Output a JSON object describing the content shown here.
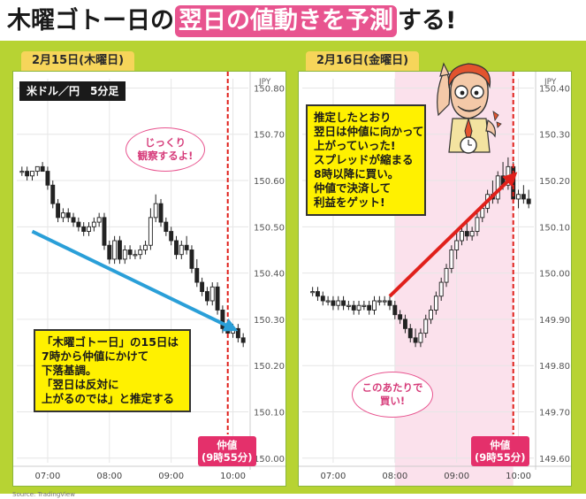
{
  "headline": {
    "part1": "木曜ゴトー日の",
    "highlight": "翌日の値動きを予測",
    "part2": "する!"
  },
  "source_note": "Source: TradingView",
  "colors": {
    "background": "#b7d333",
    "highlight": "#e8548f",
    "callout": "#fff100",
    "arrow_down": "#2a9fd8",
    "arrow_up": "#e0201b",
    "nakane_line": "#e0201b",
    "tag": "#e4306b",
    "shade": "#fbe1ec"
  },
  "panel1": {
    "date_label": "2月15日(木曜日)",
    "pair_label": "米ドル／円　5分足",
    "callout_lines": [
      "「木曜ゴトー日」の15日は",
      "7時から仲値にかけて",
      "下落基調。",
      "「翌日は反対に",
      "上がるのでは」と推定する"
    ],
    "bubble_lines": [
      "じっくり",
      "観察するよ!"
    ],
    "tag_lines": [
      "仲値",
      "(9時55分)"
    ]
  },
  "panel2": {
    "date_label": "2月16日(金曜日)",
    "callout_lines": [
      "推定したとおり",
      "翌日は仲値に向かって",
      "上がっていった!",
      "スプレッドが縮まる",
      "8時以降に買い。",
      "仲値で決済して",
      "利益をゲット!"
    ],
    "bubble_lines": [
      "このあたりで",
      "買い!"
    ],
    "tag_lines": [
      "仲値",
      "(9時55分)"
    ]
  },
  "chart_data": [
    {
      "type": "candlestick",
      "title": "",
      "currency_label": "JPY",
      "x_ticks": [
        "07:00",
        "08:00",
        "09:00",
        "10:00"
      ],
      "y_ticks": [
        "150.80",
        "150.70",
        "150.60",
        "150.50",
        "150.40",
        "150.30",
        "150.20",
        "150.10",
        "150.00"
      ],
      "ylim": [
        149.99,
        150.82
      ],
      "vertical_marker": "09:55",
      "trend_arrow": {
        "from": [
          "06:45",
          150.49
        ],
        "to": [
          "10:00",
          150.28
        ]
      },
      "candles": [
        {
          "t": "06:35",
          "o": 150.62,
          "h": 150.63,
          "l": 150.61,
          "c": 150.62
        },
        {
          "t": "06:40",
          "o": 150.62,
          "h": 150.63,
          "l": 150.6,
          "c": 150.61
        },
        {
          "t": "06:45",
          "o": 150.61,
          "h": 150.62,
          "l": 150.6,
          "c": 150.62
        },
        {
          "t": "06:50",
          "o": 150.62,
          "h": 150.63,
          "l": 150.61,
          "c": 150.63
        },
        {
          "t": "06:55",
          "o": 150.63,
          "h": 150.64,
          "l": 150.62,
          "c": 150.62
        },
        {
          "t": "07:00",
          "o": 150.62,
          "h": 150.63,
          "l": 150.58,
          "c": 150.59
        },
        {
          "t": "07:05",
          "o": 150.59,
          "h": 150.6,
          "l": 150.54,
          "c": 150.55
        },
        {
          "t": "07:10",
          "o": 150.55,
          "h": 150.56,
          "l": 150.51,
          "c": 150.52
        },
        {
          "t": "07:15",
          "o": 150.52,
          "h": 150.54,
          "l": 150.51,
          "c": 150.53
        },
        {
          "t": "07:20",
          "o": 150.53,
          "h": 150.54,
          "l": 150.51,
          "c": 150.52
        },
        {
          "t": "07:25",
          "o": 150.52,
          "h": 150.53,
          "l": 150.5,
          "c": 150.51
        },
        {
          "t": "07:30",
          "o": 150.51,
          "h": 150.52,
          "l": 150.49,
          "c": 150.5
        },
        {
          "t": "07:35",
          "o": 150.5,
          "h": 150.51,
          "l": 150.48,
          "c": 150.49
        },
        {
          "t": "07:40",
          "o": 150.49,
          "h": 150.51,
          "l": 150.48,
          "c": 150.5
        },
        {
          "t": "07:45",
          "o": 150.5,
          "h": 150.52,
          "l": 150.49,
          "c": 150.51
        },
        {
          "t": "07:50",
          "o": 150.51,
          "h": 150.53,
          "l": 150.5,
          "c": 150.52
        },
        {
          "t": "07:55",
          "o": 150.52,
          "h": 150.53,
          "l": 150.45,
          "c": 150.46
        },
        {
          "t": "08:00",
          "o": 150.46,
          "h": 150.47,
          "l": 150.42,
          "c": 150.43
        },
        {
          "t": "08:05",
          "o": 150.43,
          "h": 150.48,
          "l": 150.42,
          "c": 150.47
        },
        {
          "t": "08:10",
          "o": 150.47,
          "h": 150.48,
          "l": 150.42,
          "c": 150.43
        },
        {
          "t": "08:15",
          "o": 150.43,
          "h": 150.46,
          "l": 150.42,
          "c": 150.45
        },
        {
          "t": "08:20",
          "o": 150.45,
          "h": 150.46,
          "l": 150.43,
          "c": 150.44
        },
        {
          "t": "08:25",
          "o": 150.44,
          "h": 150.45,
          "l": 150.43,
          "c": 150.44
        },
        {
          "t": "08:30",
          "o": 150.44,
          "h": 150.46,
          "l": 150.43,
          "c": 150.45
        },
        {
          "t": "08:35",
          "o": 150.45,
          "h": 150.47,
          "l": 150.44,
          "c": 150.46
        },
        {
          "t": "08:40",
          "o": 150.46,
          "h": 150.54,
          "l": 150.45,
          "c": 150.52
        },
        {
          "t": "08:45",
          "o": 150.52,
          "h": 150.57,
          "l": 150.51,
          "c": 150.55
        },
        {
          "t": "08:50",
          "o": 150.55,
          "h": 150.56,
          "l": 150.5,
          "c": 150.51
        },
        {
          "t": "08:55",
          "o": 150.51,
          "h": 150.52,
          "l": 150.48,
          "c": 150.49
        },
        {
          "t": "09:00",
          "o": 150.49,
          "h": 150.5,
          "l": 150.46,
          "c": 150.47
        },
        {
          "t": "09:05",
          "o": 150.47,
          "h": 150.48,
          "l": 150.43,
          "c": 150.44
        },
        {
          "t": "09:10",
          "o": 150.44,
          "h": 150.47,
          "l": 150.43,
          "c": 150.46
        },
        {
          "t": "09:15",
          "o": 150.46,
          "h": 150.48,
          "l": 150.44,
          "c": 150.45
        },
        {
          "t": "09:20",
          "o": 150.45,
          "h": 150.46,
          "l": 150.4,
          "c": 150.41
        },
        {
          "t": "09:25",
          "o": 150.41,
          "h": 150.43,
          "l": 150.37,
          "c": 150.38
        },
        {
          "t": "09:30",
          "o": 150.38,
          "h": 150.39,
          "l": 150.35,
          "c": 150.36
        },
        {
          "t": "09:35",
          "o": 150.36,
          "h": 150.37,
          "l": 150.33,
          "c": 150.34
        },
        {
          "t": "09:40",
          "o": 150.34,
          "h": 150.38,
          "l": 150.33,
          "c": 150.37
        },
        {
          "t": "09:45",
          "o": 150.37,
          "h": 150.38,
          "l": 150.31,
          "c": 150.32
        },
        {
          "t": "09:50",
          "o": 150.32,
          "h": 150.33,
          "l": 150.27,
          "c": 150.28
        },
        {
          "t": "09:55",
          "o": 150.28,
          "h": 150.29,
          "l": 150.26,
          "c": 150.27
        },
        {
          "t": "10:00",
          "o": 150.27,
          "h": 150.29,
          "l": 150.26,
          "c": 150.28
        },
        {
          "t": "10:05",
          "o": 150.28,
          "h": 150.29,
          "l": 150.25,
          "c": 150.26
        },
        {
          "t": "10:10",
          "o": 150.26,
          "h": 150.27,
          "l": 150.24,
          "c": 150.25
        }
      ]
    },
    {
      "type": "candlestick",
      "title": "",
      "currency_label": "JPY",
      "x_ticks": [
        "07:00",
        "08:00",
        "09:00",
        "10:00"
      ],
      "y_ticks": [
        "150.40",
        "150.30",
        "150.20",
        "150.10",
        "150.00",
        "149.90",
        "149.80",
        "149.70",
        "149.60"
      ],
      "ylim": [
        149.59,
        150.42
      ],
      "vertical_marker": "09:55",
      "shaded_range": [
        "08:00",
        "09:55"
      ],
      "trend_arrow": {
        "from": [
          "07:55",
          149.95
        ],
        "to": [
          "09:55",
          150.21
        ]
      },
      "candles": [
        {
          "t": "06:40",
          "o": 149.96,
          "h": 149.97,
          "l": 149.95,
          "c": 149.96
        },
        {
          "t": "06:45",
          "o": 149.96,
          "h": 149.97,
          "l": 149.94,
          "c": 149.95
        },
        {
          "t": "06:50",
          "o": 149.95,
          "h": 149.96,
          "l": 149.93,
          "c": 149.94
        },
        {
          "t": "06:55",
          "o": 149.94,
          "h": 149.95,
          "l": 149.93,
          "c": 149.94
        },
        {
          "t": "07:00",
          "o": 149.94,
          "h": 149.95,
          "l": 149.92,
          "c": 149.93
        },
        {
          "t": "07:05",
          "o": 149.93,
          "h": 149.95,
          "l": 149.92,
          "c": 149.94
        },
        {
          "t": "07:10",
          "o": 149.94,
          "h": 149.95,
          "l": 149.92,
          "c": 149.93
        },
        {
          "t": "07:15",
          "o": 149.93,
          "h": 149.94,
          "l": 149.92,
          "c": 149.93
        },
        {
          "t": "07:20",
          "o": 149.93,
          "h": 149.94,
          "l": 149.91,
          "c": 149.92
        },
        {
          "t": "07:25",
          "o": 149.92,
          "h": 149.94,
          "l": 149.91,
          "c": 149.93
        },
        {
          "t": "07:30",
          "o": 149.93,
          "h": 149.94,
          "l": 149.92,
          "c": 149.93
        },
        {
          "t": "07:35",
          "o": 149.93,
          "h": 149.94,
          "l": 149.91,
          "c": 149.92
        },
        {
          "t": "07:40",
          "o": 149.92,
          "h": 149.95,
          "l": 149.91,
          "c": 149.94
        },
        {
          "t": "07:45",
          "o": 149.94,
          "h": 149.95,
          "l": 149.93,
          "c": 149.94
        },
        {
          "t": "07:50",
          "o": 149.94,
          "h": 149.95,
          "l": 149.93,
          "c": 149.94
        },
        {
          "t": "07:55",
          "o": 149.94,
          "h": 149.95,
          "l": 149.92,
          "c": 149.93
        },
        {
          "t": "08:00",
          "o": 149.93,
          "h": 149.94,
          "l": 149.9,
          "c": 149.91
        },
        {
          "t": "08:05",
          "o": 149.91,
          "h": 149.92,
          "l": 149.89,
          "c": 149.9
        },
        {
          "t": "08:10",
          "o": 149.9,
          "h": 149.91,
          "l": 149.87,
          "c": 149.88
        },
        {
          "t": "08:15",
          "o": 149.88,
          "h": 149.89,
          "l": 149.85,
          "c": 149.86
        },
        {
          "t": "08:20",
          "o": 149.86,
          "h": 149.88,
          "l": 149.84,
          "c": 149.85
        },
        {
          "t": "08:25",
          "o": 149.85,
          "h": 149.88,
          "l": 149.84,
          "c": 149.87
        },
        {
          "t": "08:30",
          "o": 149.87,
          "h": 149.91,
          "l": 149.86,
          "c": 149.9
        },
        {
          "t": "08:35",
          "o": 149.9,
          "h": 149.93,
          "l": 149.89,
          "c": 149.92
        },
        {
          "t": "08:40",
          "o": 149.92,
          "h": 149.96,
          "l": 149.91,
          "c": 149.95
        },
        {
          "t": "08:45",
          "o": 149.95,
          "h": 149.99,
          "l": 149.94,
          "c": 149.98
        },
        {
          "t": "08:50",
          "o": 149.98,
          "h": 150.02,
          "l": 149.97,
          "c": 150.01
        },
        {
          "t": "08:55",
          "o": 150.01,
          "h": 150.06,
          "l": 150.0,
          "c": 150.05
        },
        {
          "t": "09:00",
          "o": 150.05,
          "h": 150.09,
          "l": 150.03,
          "c": 150.07
        },
        {
          "t": "09:05",
          "o": 150.07,
          "h": 150.1,
          "l": 150.06,
          "c": 150.09
        },
        {
          "t": "09:10",
          "o": 150.09,
          "h": 150.11,
          "l": 150.07,
          "c": 150.08
        },
        {
          "t": "09:15",
          "o": 150.08,
          "h": 150.1,
          "l": 150.07,
          "c": 150.09
        },
        {
          "t": "09:20",
          "o": 150.09,
          "h": 150.13,
          "l": 150.08,
          "c": 150.12
        },
        {
          "t": "09:25",
          "o": 150.12,
          "h": 150.15,
          "l": 150.11,
          "c": 150.14
        },
        {
          "t": "09:30",
          "o": 150.14,
          "h": 150.18,
          "l": 150.13,
          "c": 150.17
        },
        {
          "t": "09:35",
          "o": 150.17,
          "h": 150.2,
          "l": 150.15,
          "c": 150.16
        },
        {
          "t": "09:40",
          "o": 150.16,
          "h": 150.22,
          "l": 150.15,
          "c": 150.21
        },
        {
          "t": "09:45",
          "o": 150.21,
          "h": 150.24,
          "l": 150.18,
          "c": 150.19
        },
        {
          "t": "09:50",
          "o": 150.19,
          "h": 150.25,
          "l": 150.18,
          "c": 150.23
        },
        {
          "t": "09:55",
          "o": 150.23,
          "h": 150.24,
          "l": 150.15,
          "c": 150.16
        },
        {
          "t": "10:00",
          "o": 150.16,
          "h": 150.18,
          "l": 150.14,
          "c": 150.17
        },
        {
          "t": "10:05",
          "o": 150.17,
          "h": 150.19,
          "l": 150.15,
          "c": 150.16
        },
        {
          "t": "10:10",
          "o": 150.16,
          "h": 150.18,
          "l": 150.14,
          "c": 150.15
        }
      ]
    }
  ]
}
